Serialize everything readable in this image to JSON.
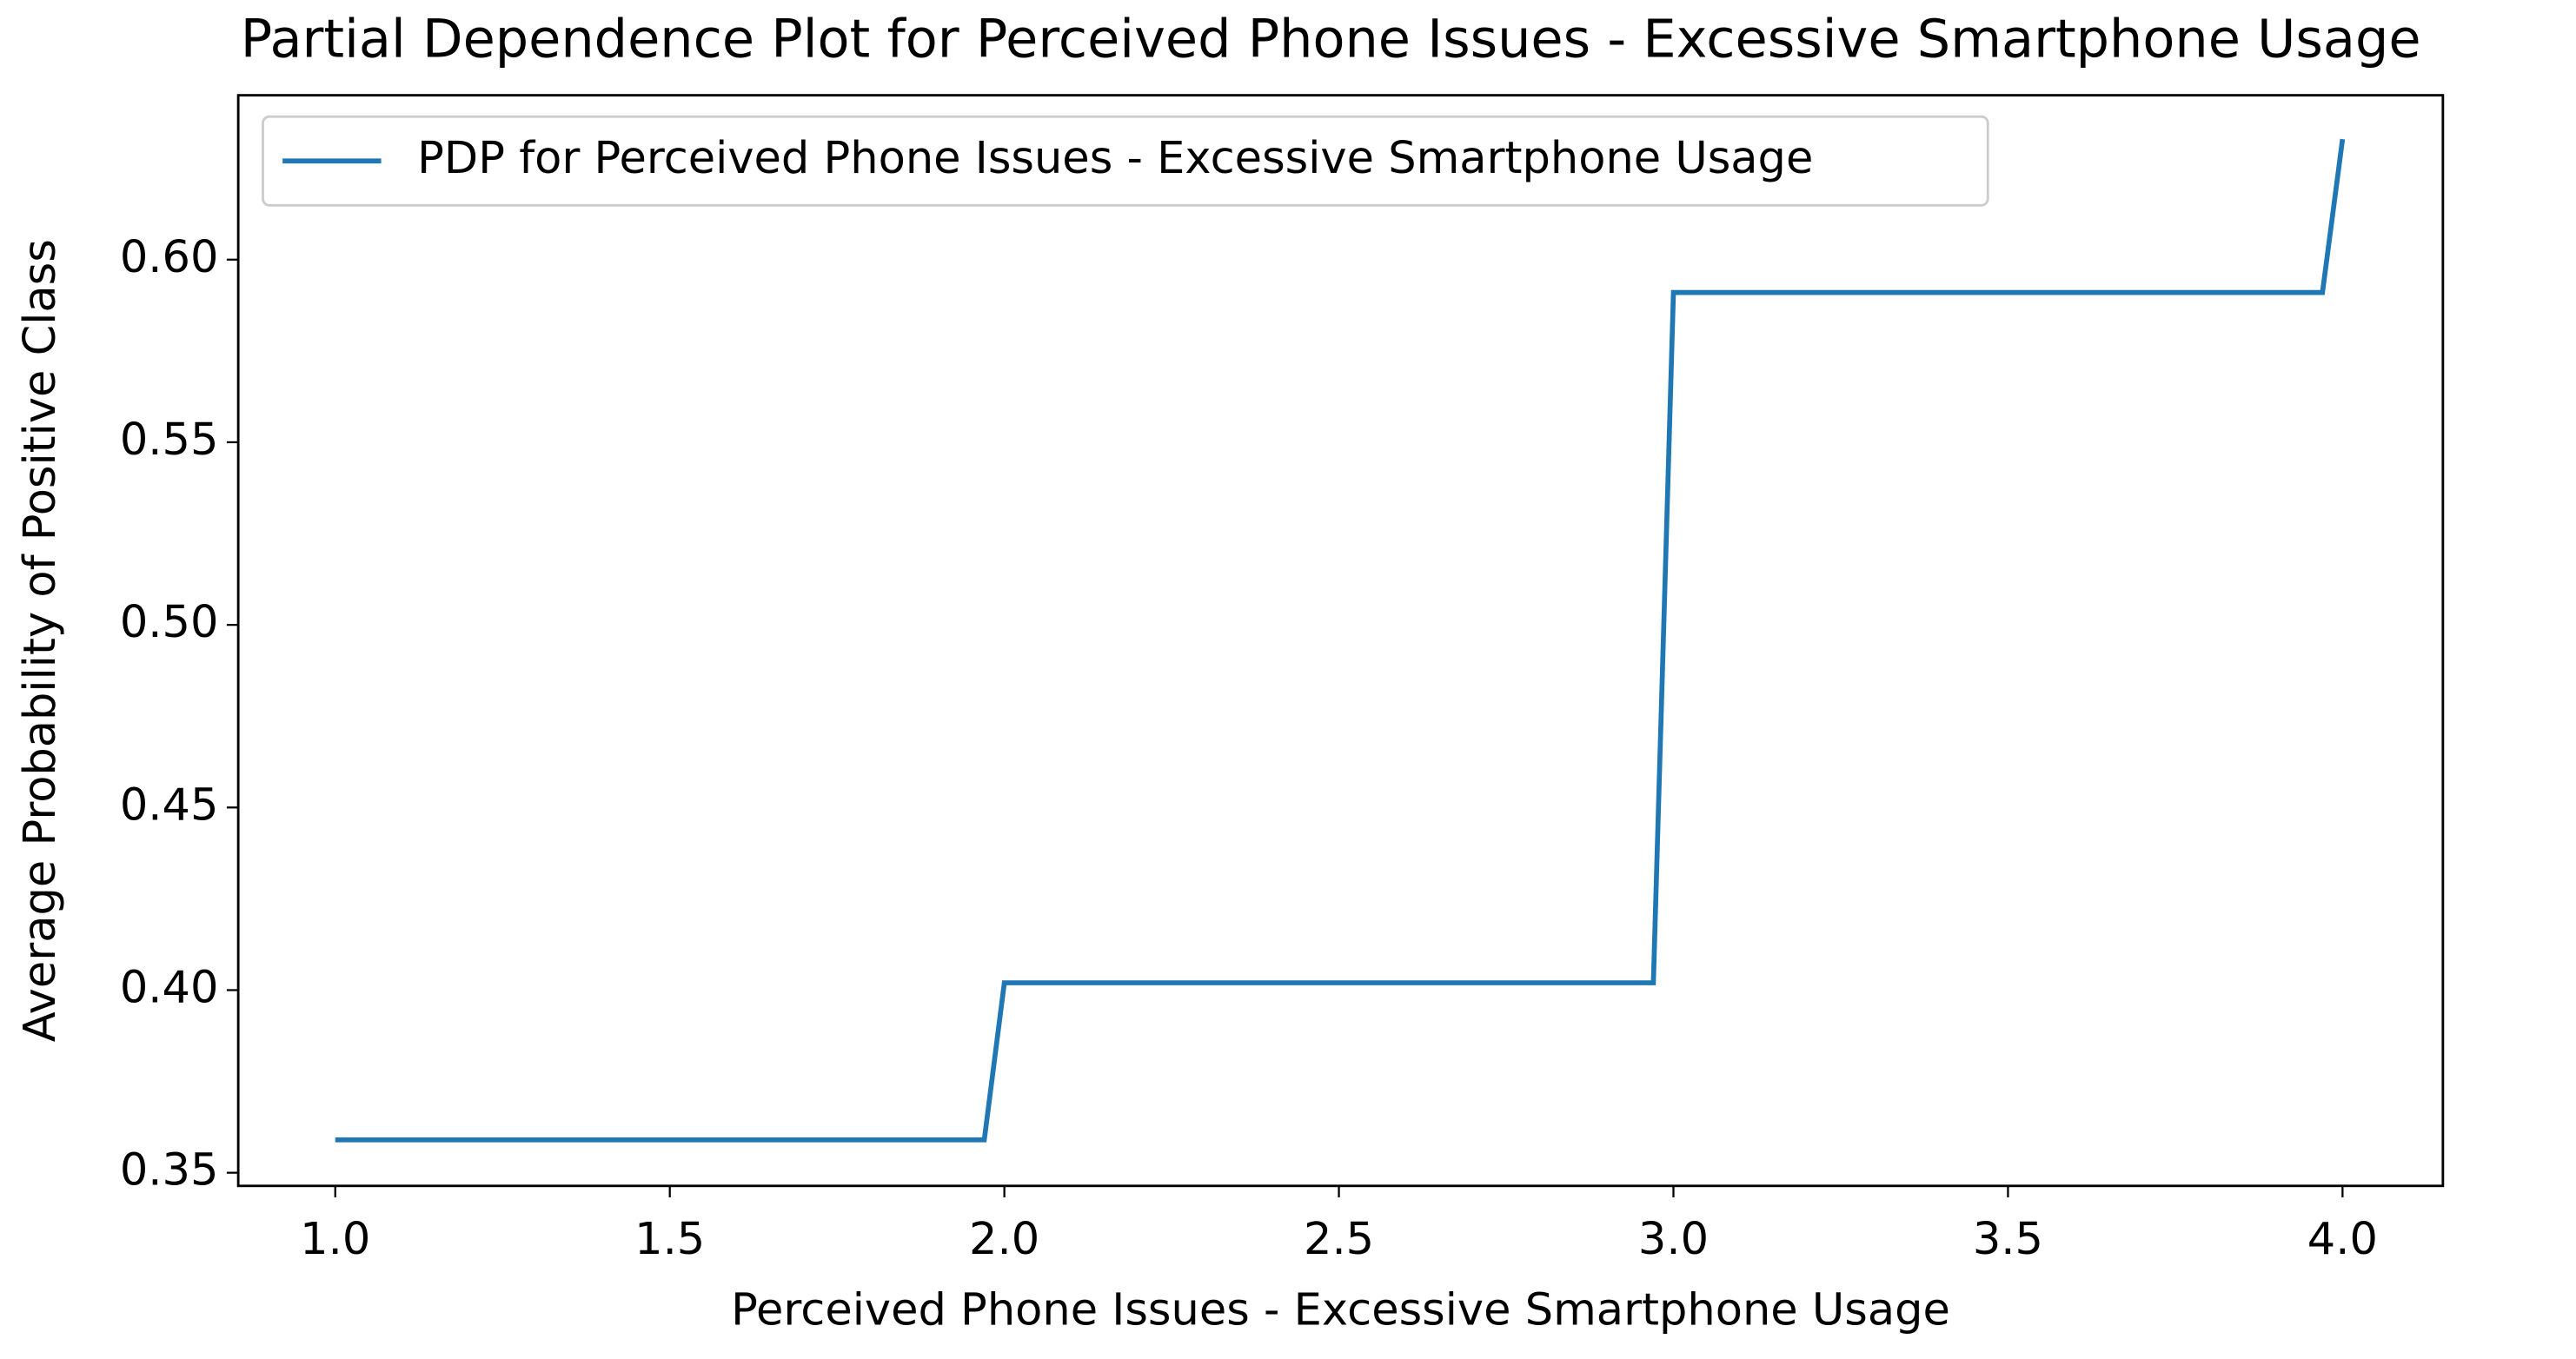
{
  "chart_data": {
    "type": "line",
    "title": "Partial Dependence Plot for Perceived Phone Issues - Excessive Smartphone Usage",
    "x_label": "Perceived Phone Issues - Excessive Smartphone Usage",
    "y_label": "Average Probability of Positive Class",
    "x": [
      1.0,
      1.97,
      2.0,
      2.97,
      3.0,
      3.97,
      4.0
    ],
    "series": [
      {
        "name": "PDP for Perceived Phone Issues - Excessive Smartphone Usage",
        "color": "#1f77b4",
        "values": [
          0.359,
          0.359,
          0.402,
          0.402,
          0.591,
          0.591,
          0.633
        ]
      }
    ],
    "xlim": [
      0.855,
      4.15
    ],
    "ylim": [
      0.3464,
      0.645
    ],
    "xticks": [
      {
        "value": 1,
        "label": "1.0"
      },
      1.5,
      {
        "value": 2,
        "label": "2.0"
      },
      2.5,
      {
        "value": 3,
        "label": "3.0"
      },
      3.5,
      {
        "value": 4,
        "label": "4.0"
      }
    ],
    "yticks": [
      0.35,
      {
        "value": 0.4,
        "label": "0.40"
      },
      0.45,
      {
        "value": 0.5,
        "label": "0.50"
      },
      0.55,
      {
        "value": 0.6,
        "label": "0.60"
      }
    ],
    "legend": "upper left",
    "grid": false
  }
}
